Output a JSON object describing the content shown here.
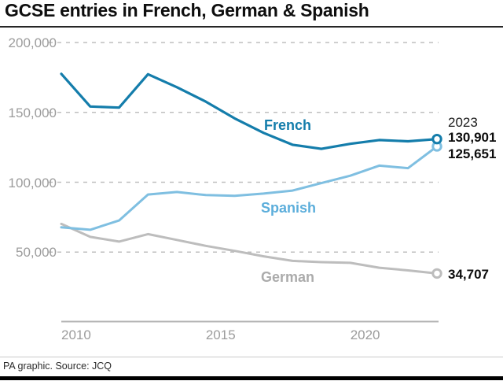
{
  "header": {
    "title": "GCSE entries in French, German & Spanish"
  },
  "annotations": {
    "year": "2023",
    "french_value": "130,901",
    "spanish_value": "125,651",
    "german_value": "34,707"
  },
  "footer": {
    "credit": "PA graphic. Source: JCQ"
  },
  "colors": {
    "french": "#147dab",
    "spanish": "#7fbfe1",
    "german": "#bdbdbd",
    "gridline": "#bfbfbf",
    "axis": "#b4b4b4",
    "tick_text": "#9c9c9c"
  },
  "chart_data": {
    "type": "line",
    "title": "GCSE entries in French, German & Spanish",
    "xlabel": "",
    "ylabel": "",
    "x": [
      2010,
      2011,
      2012,
      2013,
      2014,
      2015,
      2016,
      2017,
      2018,
      2019,
      2020,
      2021,
      2022,
      2023
    ],
    "x_ticks": [
      2010,
      2015,
      2020
    ],
    "y_ticks": [
      "200,000",
      "150,000",
      "100,000",
      "50,000"
    ],
    "y_tick_values": [
      200000,
      150000,
      100000,
      50000
    ],
    "ylim": [
      0,
      210000
    ],
    "grid": "dashed-horizontal",
    "legend_position": "inline-labels-on-lines",
    "end_markers": "open-circle-on-last-point",
    "series": [
      {
        "name": "French",
        "color": "#147dab",
        "width": 3.2,
        "values": [
          177600,
          154200,
          153400,
          177300,
          168000,
          157700,
          145700,
          135300,
          126800,
          123900,
          127500,
          130200,
          129300,
          130901
        ],
        "end_label": "130,901"
      },
      {
        "name": "Spanish",
        "color": "#7fbfe1",
        "width": 3,
        "values": [
          67700,
          66000,
          72600,
          91200,
          93000,
          90800,
          90300,
          91900,
          94000,
          99400,
          104700,
          111900,
          110100,
          125651
        ],
        "end_label": "125,651"
      },
      {
        "name": "German",
        "color": "#bdbdbd",
        "width": 3,
        "values": [
          70200,
          60900,
          57500,
          62900,
          58700,
          54500,
          50900,
          47000,
          43700,
          42800,
          42300,
          38800,
          36900,
          34707
        ],
        "end_label": "34,707"
      }
    ]
  }
}
